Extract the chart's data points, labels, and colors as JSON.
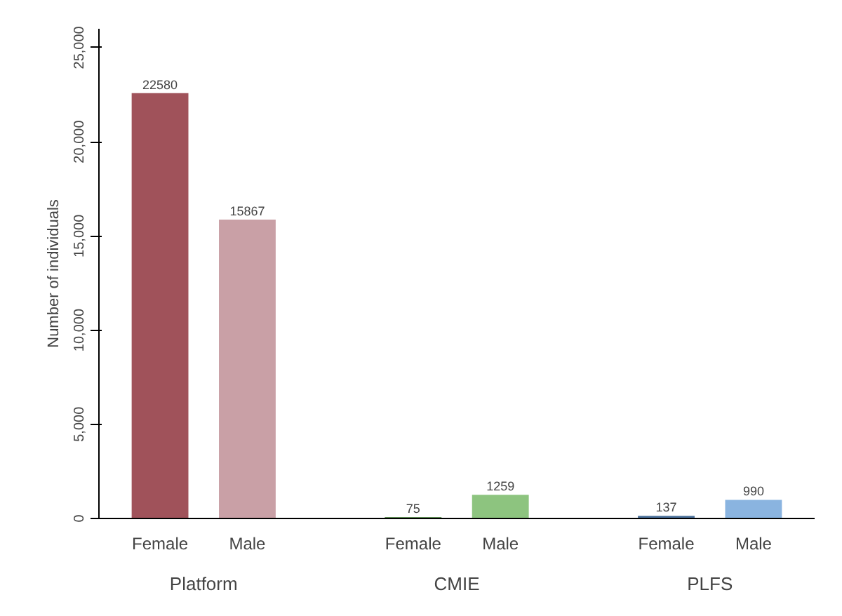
{
  "chart_data": {
    "type": "bar",
    "ylabel": "Number of individuals",
    "categories": [
      "Female",
      "Male",
      "Female",
      "Male",
      "Female",
      "Male"
    ],
    "values": [
      22580,
      15867,
      75,
      1259,
      137,
      990
    ],
    "colors": [
      "#a0525a",
      "#c9a0a6",
      "#5f8f55",
      "#8dc47f",
      "#4a6f99",
      "#8ab4e0"
    ],
    "ylim": [
      0,
      26000
    ],
    "yticks": [
      {
        "value": 0,
        "label": "0"
      },
      {
        "value": 5000,
        "label": "5,000"
      },
      {
        "value": 10000,
        "label": "10,000"
      },
      {
        "value": 15000,
        "label": "15,000"
      },
      {
        "value": 20000,
        "label": "20,000"
      },
      {
        "value": 25000,
        "label": "25,000"
      }
    ],
    "data_labels": true,
    "grid": false,
    "annotations": [
      "Platform",
      "CMIE",
      "PLFS"
    ]
  }
}
